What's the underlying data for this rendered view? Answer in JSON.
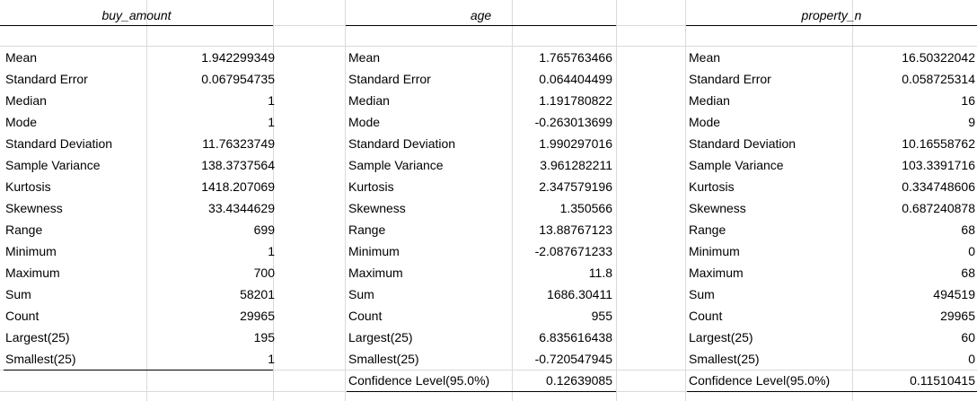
{
  "columns": [
    {
      "header": "buy_amount",
      "rows": [
        {
          "label": "Mean",
          "value": "1.942299349"
        },
        {
          "label": "Standard Error",
          "value": "0.067954735"
        },
        {
          "label": "Median",
          "value": "1"
        },
        {
          "label": "Mode",
          "value": "1"
        },
        {
          "label": "Standard Deviation",
          "value": "11.76323749"
        },
        {
          "label": "Sample Variance",
          "value": "138.3737564"
        },
        {
          "label": "Kurtosis",
          "value": "1418.207069"
        },
        {
          "label": "Skewness",
          "value": "33.4344629"
        },
        {
          "label": "Range",
          "value": "699"
        },
        {
          "label": "Minimum",
          "value": "1"
        },
        {
          "label": "Maximum",
          "value": "700"
        },
        {
          "label": "Sum",
          "value": "58201"
        },
        {
          "label": "Count",
          "value": "29965"
        },
        {
          "label": "Largest(25)",
          "value": "195"
        },
        {
          "label": "Smallest(25)",
          "value": "1"
        }
      ]
    },
    {
      "header": "age",
      "rows": [
        {
          "label": "Mean",
          "value": "1.765763466"
        },
        {
          "label": "Standard Error",
          "value": "0.064404499"
        },
        {
          "label": "Median",
          "value": "1.191780822"
        },
        {
          "label": "Mode",
          "value": "-0.263013699"
        },
        {
          "label": "Standard Deviation",
          "value": "1.990297016"
        },
        {
          "label": "Sample Variance",
          "value": "3.961282211"
        },
        {
          "label": "Kurtosis",
          "value": "2.347579196"
        },
        {
          "label": "Skewness",
          "value": "1.350566"
        },
        {
          "label": "Range",
          "value": "13.88767123"
        },
        {
          "label": "Minimum",
          "value": "-2.087671233"
        },
        {
          "label": "Maximum",
          "value": "11.8"
        },
        {
          "label": "Sum",
          "value": "1686.30411"
        },
        {
          "label": "Count",
          "value": "955"
        },
        {
          "label": "Largest(25)",
          "value": "6.835616438"
        },
        {
          "label": "Smallest(25)",
          "value": "-0.720547945"
        },
        {
          "label": "Confidence Level(95.0%)",
          "value": "0.12639085"
        }
      ]
    },
    {
      "header": "property_n",
      "rows": [
        {
          "label": "Mean",
          "value": "16.50322042"
        },
        {
          "label": "Standard Error",
          "value": "0.058725314"
        },
        {
          "label": "Median",
          "value": "16"
        },
        {
          "label": "Mode",
          "value": "9"
        },
        {
          "label": "Standard Deviation",
          "value": "10.16558762"
        },
        {
          "label": "Sample Variance",
          "value": "103.3391716"
        },
        {
          "label": "Kurtosis",
          "value": "0.334748606"
        },
        {
          "label": "Skewness",
          "value": "0.687240878"
        },
        {
          "label": "Range",
          "value": "68"
        },
        {
          "label": "Minimum",
          "value": "0"
        },
        {
          "label": "Maximum",
          "value": "68"
        },
        {
          "label": "Sum",
          "value": "494519"
        },
        {
          "label": "Count",
          "value": "29965"
        },
        {
          "label": "Largest(25)",
          "value": "60"
        },
        {
          "label": "Smallest(25)",
          "value": "0"
        },
        {
          "label": "Confidence Level(95.0%)",
          "value": "0.11510415"
        }
      ]
    }
  ]
}
